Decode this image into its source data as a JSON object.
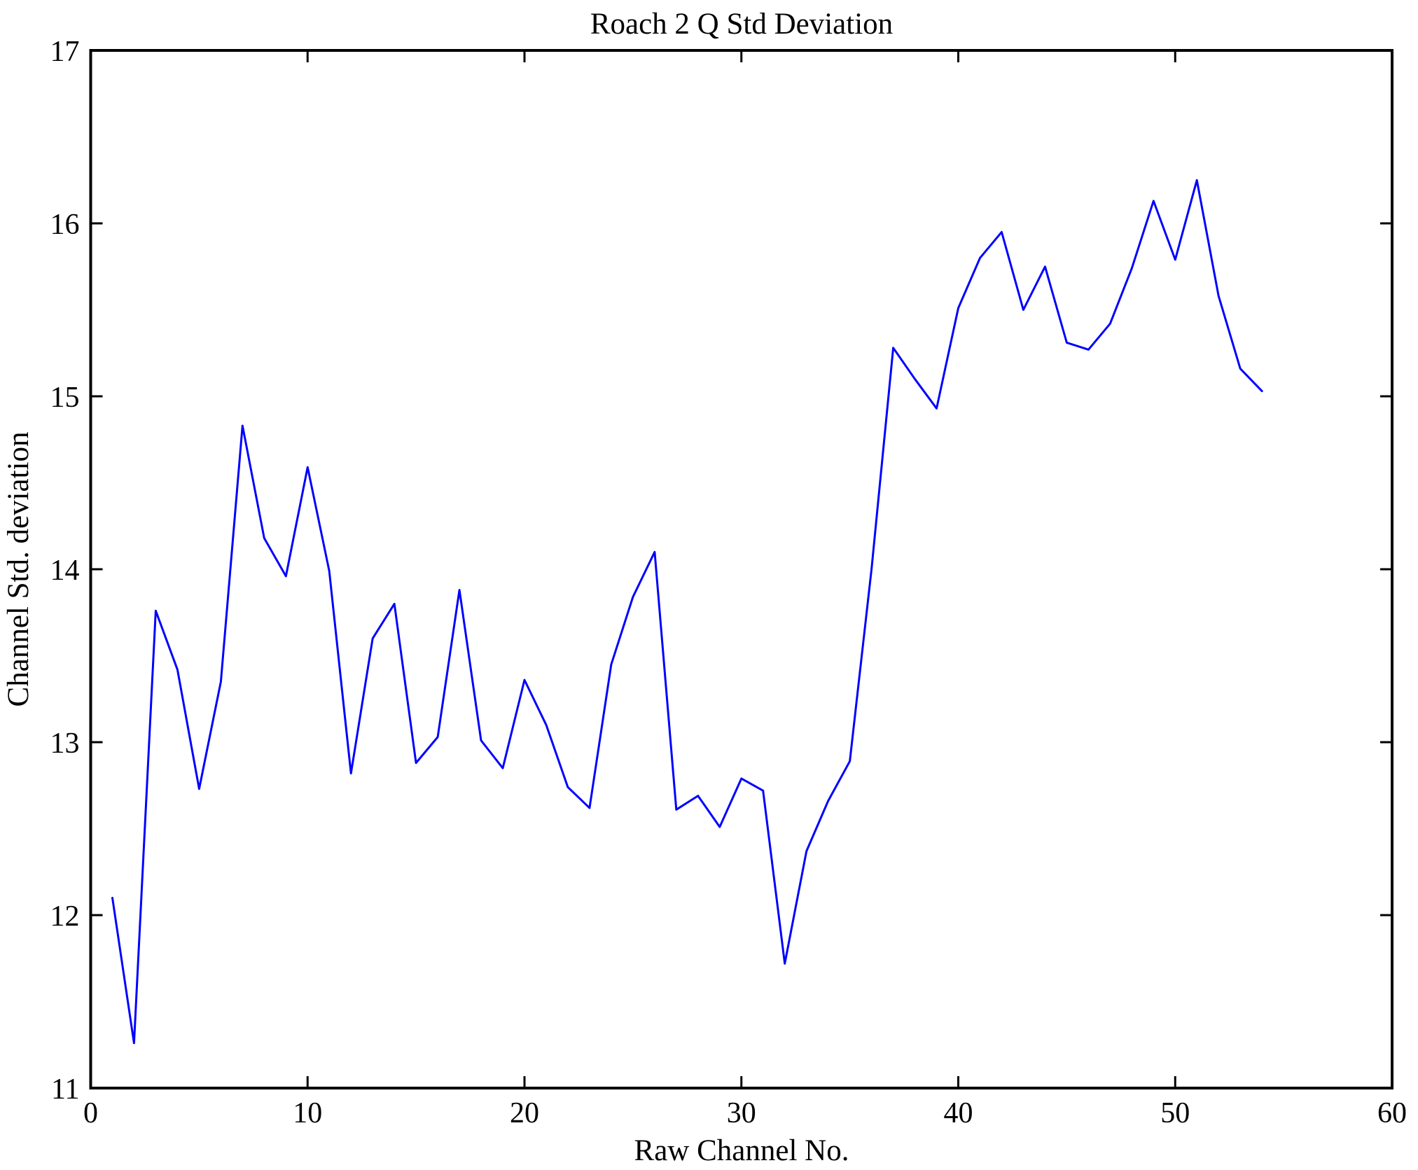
{
  "figure": {
    "background": "#ffffff"
  },
  "chart_data": {
    "type": "line",
    "title": "Roach 2 Q Std Deviation",
    "xlabel": "Raw Channel No.",
    "ylabel": "Channel Std. deviation",
    "xlim": [
      0,
      60
    ],
    "ylim": [
      11,
      17
    ],
    "xticks": [
      0,
      10,
      20,
      30,
      40,
      50,
      60
    ],
    "yticks": [
      11,
      12,
      13,
      14,
      15,
      16,
      17
    ],
    "grid": false,
    "legend": "none",
    "line_color": "#0000FF",
    "axis_color": "#000000",
    "x": [
      1,
      2,
      3,
      4,
      5,
      6,
      7,
      8,
      9,
      10,
      11,
      12,
      13,
      14,
      15,
      16,
      17,
      18,
      19,
      20,
      21,
      22,
      23,
      24,
      25,
      26,
      27,
      28,
      29,
      30,
      31,
      32,
      33,
      34,
      35,
      36,
      37,
      38,
      39,
      40,
      41,
      42,
      43,
      44,
      45,
      46,
      47,
      48,
      49,
      50,
      51,
      52,
      53,
      54
    ],
    "values": [
      12.1,
      11.26,
      13.76,
      13.42,
      12.73,
      13.35,
      14.83,
      14.18,
      13.96,
      14.59,
      13.99,
      12.82,
      13.6,
      13.8,
      12.88,
      13.03,
      13.88,
      13.01,
      12.85,
      13.36,
      13.1,
      12.74,
      12.62,
      13.45,
      13.84,
      14.1,
      12.61,
      12.69,
      12.51,
      12.79,
      12.72,
      11.72,
      12.37,
      12.66,
      12.89,
      14.0,
      15.28,
      15.1,
      14.93,
      15.51,
      15.8,
      15.95,
      15.5,
      15.75,
      15.31,
      15.27,
      15.42,
      15.74,
      16.13,
      15.79,
      16.25,
      15.58,
      15.16,
      15.03
    ]
  }
}
